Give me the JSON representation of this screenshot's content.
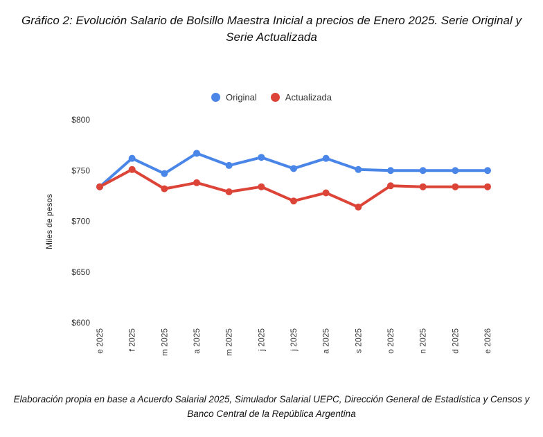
{
  "title": "Gráfico 2: Evolución Salario de Bolsillo Maestra Inicial a precios de Enero 2025. Serie Original y Serie Actualizada",
  "source": "Elaboración propia en base a Acuerdo Salarial 2025, Simulador Salarial UEPC, Dirección General de Estadística y Censos y Banco Central de la República Argentina",
  "chart_data": {
    "type": "line",
    "title": "Gráfico 2: Evolución Salario de Bolsillo Maestra Inicial a precios de Enero 2025. Serie Original y Serie Actualizada",
    "xlabel": "",
    "ylabel": "Miles de pesos",
    "categories": [
      "e 2025",
      "f 2025",
      "m 2025",
      "a 2025",
      "m 2025",
      "j 2025",
      "j 2025",
      "a 2025",
      "s 2025",
      "o 2025",
      "n 2025",
      "d 2025",
      "e 2026"
    ],
    "ylim": [
      600,
      800
    ],
    "yticks": [
      600,
      650,
      700,
      750,
      800
    ],
    "ytick_labels": [
      "$600",
      "$650",
      "$700",
      "$750",
      "$800"
    ],
    "grid": false,
    "legend": "top-center",
    "series": [
      {
        "name": "Original",
        "color": "#4a86e8",
        "values": [
          734,
          762,
          747,
          767,
          755,
          763,
          752,
          762,
          751,
          750,
          750,
          750,
          750
        ]
      },
      {
        "name": "Actualizada",
        "color": "#db4437",
        "values": [
          734,
          751,
          732,
          738,
          729,
          734,
          720,
          728,
          714,
          735,
          734,
          734,
          734
        ]
      }
    ]
  }
}
